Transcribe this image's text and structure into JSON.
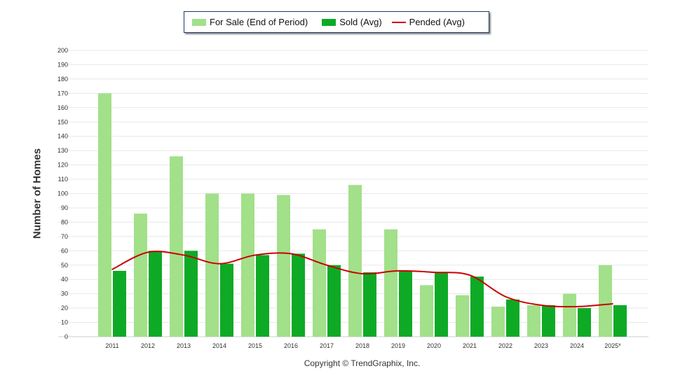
{
  "chart_data": {
    "type": "bar",
    "ylabel": "Number of Homes",
    "ylim": [
      0,
      200
    ],
    "ytick_step": 10,
    "grid": true,
    "legend_position": "top",
    "categories": [
      "2011",
      "2012",
      "2013",
      "2014",
      "2015",
      "2016",
      "2017",
      "2018",
      "2019",
      "2020",
      "2021",
      "2022",
      "2023",
      "2024",
      "2025*"
    ],
    "series": [
      {
        "name": "For Sale (End of Period)",
        "type": "bar",
        "color": "#a2e08a",
        "values": [
          170,
          86,
          126,
          100,
          100,
          99,
          75,
          106,
          75,
          36,
          29,
          21,
          22,
          30,
          50
        ]
      },
      {
        "name": "Sold (Avg)",
        "type": "bar",
        "color": "#0eaa26",
        "values": [
          46,
          60,
          60,
          51,
          57,
          58,
          50,
          45,
          46,
          45,
          42,
          26,
          22,
          20,
          22
        ]
      },
      {
        "name": "Pended (Avg)",
        "type": "line",
        "color": "#cc0000",
        "values": [
          47,
          59,
          57,
          51,
          57,
          58,
          50,
          44,
          46,
          45,
          43,
          28,
          22,
          21,
          23
        ]
      }
    ]
  },
  "copyright": "Copyright © TrendGraphix, Inc."
}
